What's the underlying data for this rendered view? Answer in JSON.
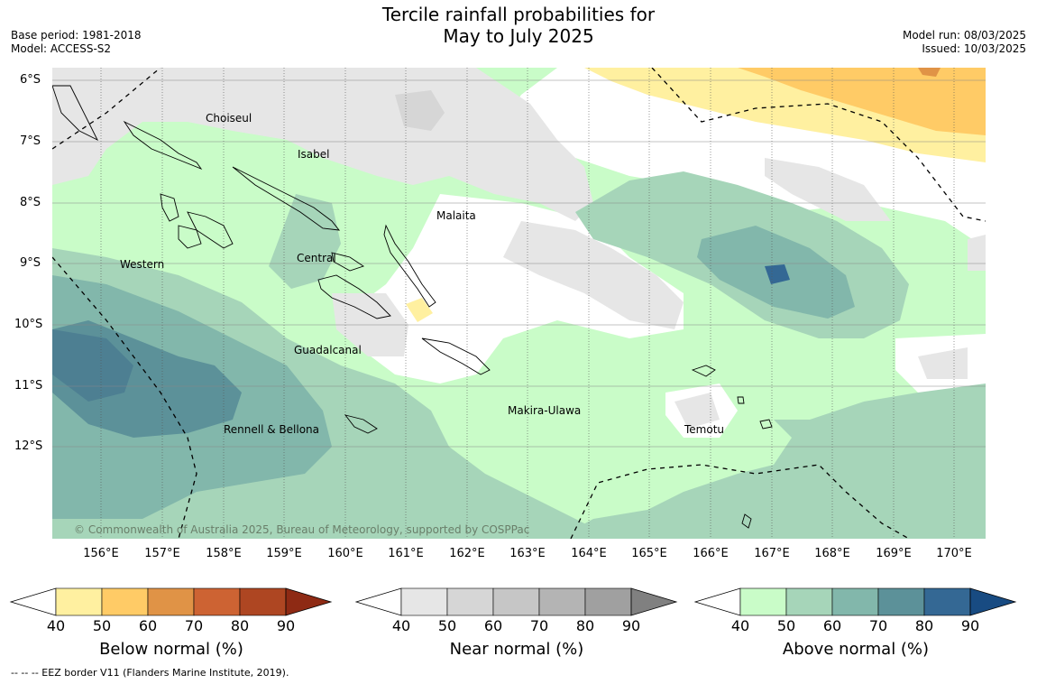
{
  "title": {
    "line1": "Tercile rainfall probabilities for",
    "line2": "May to July 2025"
  },
  "meta_left": {
    "base_period": "Base period: 1981-2018",
    "model": "Model: ACCESS-S2"
  },
  "meta_right": {
    "model_run": "Model run: 08/03/2025",
    "issued": "Issued: 10/03/2025"
  },
  "latitude_labels": [
    "6°S",
    "7°S",
    "8°S",
    "9°S",
    "10°S",
    "11°S",
    "12°S"
  ],
  "longitude_labels": [
    "156°E",
    "157°E",
    "158°E",
    "159°E",
    "160°E",
    "161°E",
    "162°E",
    "163°E",
    "164°E",
    "165°E",
    "166°E",
    "167°E",
    "168°E",
    "169°E",
    "170°E"
  ],
  "places": {
    "choiseul": "Choiseul",
    "isabel": "Isabel",
    "malaita": "Malaita",
    "central": "Central",
    "western": "Western",
    "guadalcanal": "Guadalcanal",
    "makira_ulawa": "Makira-Ulawa",
    "temotu": "Temotu",
    "rennell_bellona": "Rennell & Bellona"
  },
  "copyright": "© Commonwealth of Australia 2025, Bureau of Meteorology, supported by COSPPac",
  "colorbars": {
    "below": {
      "title": "Below normal (%)",
      "ticks": [
        "40",
        "50",
        "60",
        "70",
        "80",
        "90"
      ],
      "colors": [
        "#ffffff",
        "#fff0a0",
        "#ffcb66",
        "#e09346",
        "#cd6333",
        "#ae4622",
        "#8e2a14"
      ]
    },
    "near": {
      "title": "Near normal (%)",
      "ticks": [
        "40",
        "50",
        "60",
        "70",
        "80",
        "90"
      ],
      "colors": [
        "#ffffff",
        "#e6e6e6",
        "#d6d6d6",
        "#c6c6c6",
        "#b4b4b4",
        "#a0a0a0",
        "#808080"
      ]
    },
    "above": {
      "title": "Above normal (%)",
      "ticks": [
        "40",
        "50",
        "60",
        "70",
        "80",
        "90"
      ],
      "colors": [
        "#ffffff",
        "#c9fcc8",
        "#a6d5b9",
        "#82b7ab",
        "#5c9199",
        "#346894",
        "#184b82"
      ]
    }
  },
  "footer": "--  --  -- EEZ border V11 (Flanders Marine Institute, 2019)."
}
